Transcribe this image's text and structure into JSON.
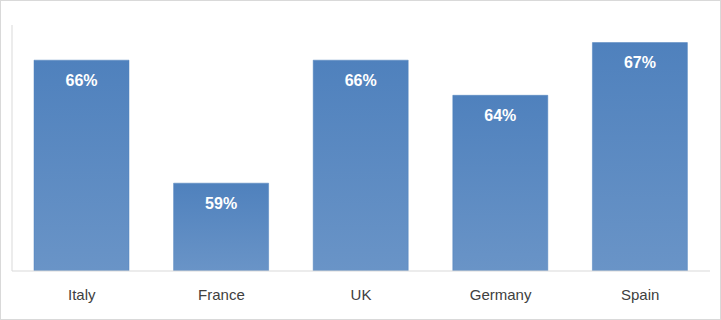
{
  "chart_data": {
    "type": "bar",
    "categories": [
      "Italy",
      "France",
      "UK",
      "Germany",
      "Spain"
    ],
    "values": [
      66,
      59,
      66,
      64,
      67
    ],
    "value_labels": [
      "66%",
      "59%",
      "66%",
      "64%",
      "67%"
    ],
    "color": "#4f81bd",
    "ylim": [
      54,
      68
    ],
    "data_labels": true,
    "tick_labels": "x",
    "grid": false
  }
}
